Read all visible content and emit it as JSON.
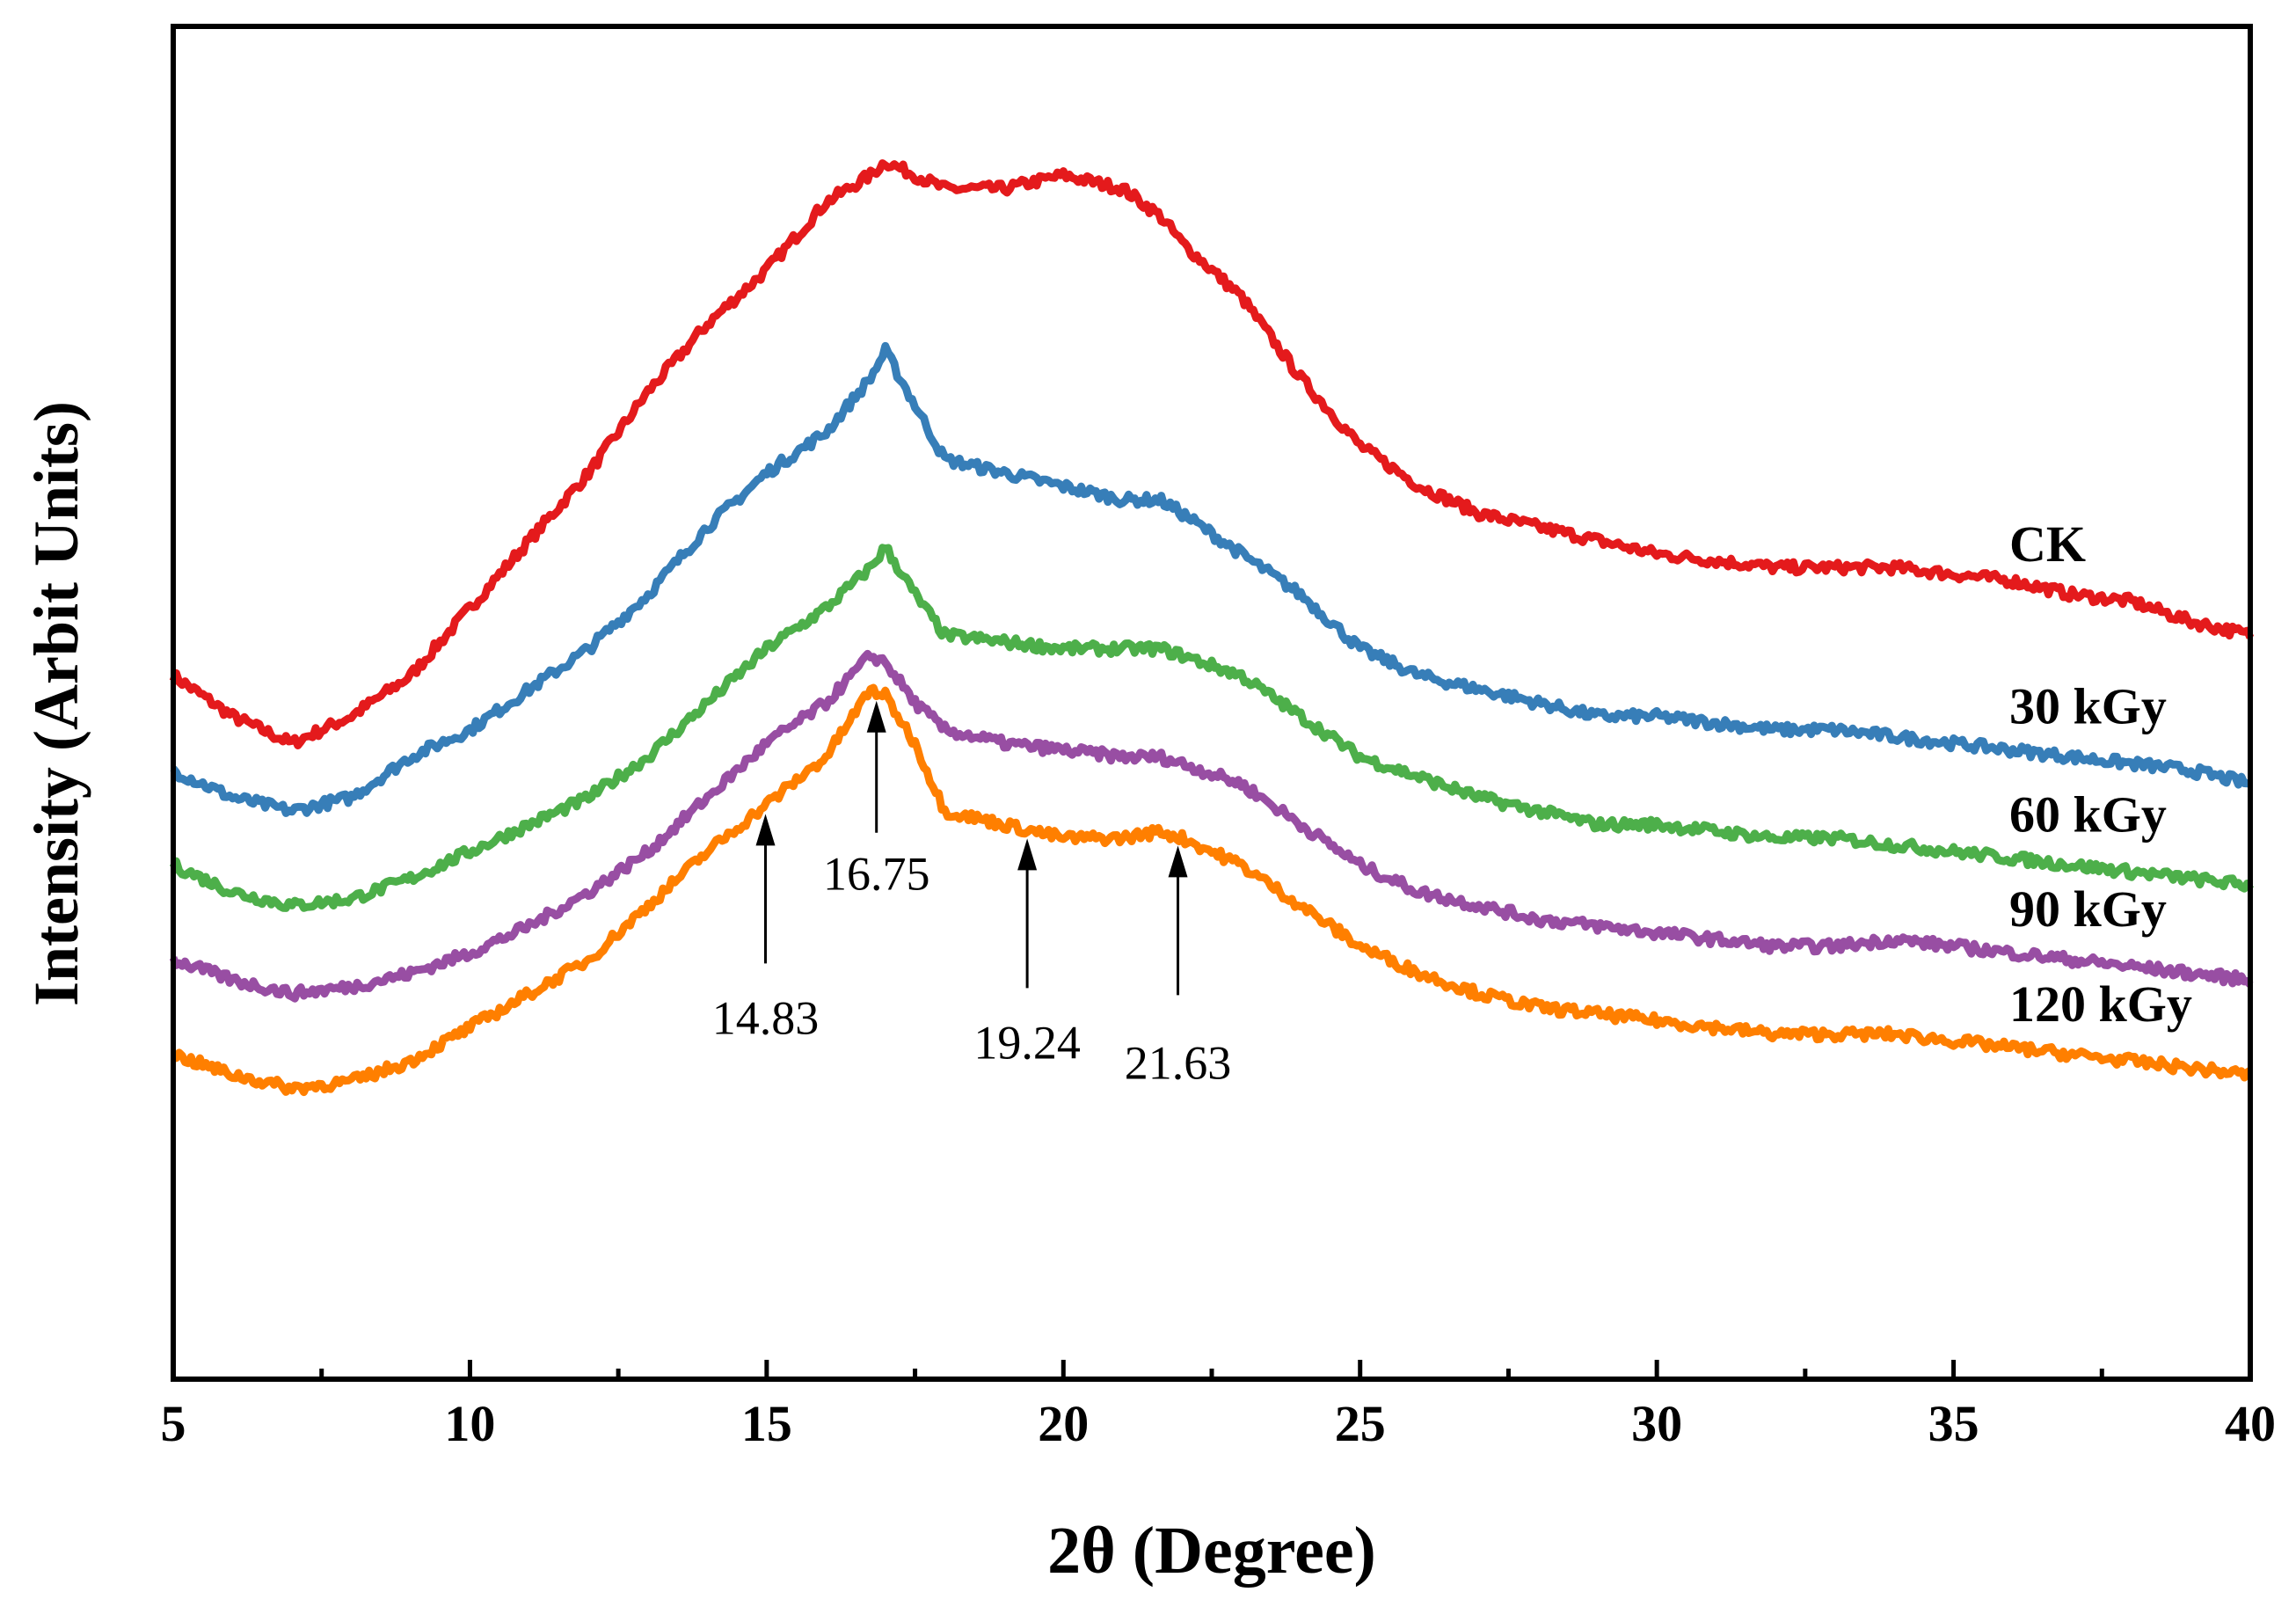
{
  "chart_data": {
    "type": "line",
    "title": "",
    "xlabel": "2θ (Degree)",
    "ylabel": "Intensity (Arbit Units)",
    "xlim": [
      5,
      40
    ],
    "xticks": [
      5,
      10,
      15,
      20,
      25,
      30,
      35,
      40
    ],
    "yticks_shown": false,
    "grid": false,
    "x": [
      5,
      6,
      7,
      8,
      9,
      10,
      11,
      12,
      13,
      14,
      15,
      16,
      16.75,
      17,
      17.5,
      18,
      19,
      20,
      21,
      21.63,
      22,
      23,
      24,
      25,
      26,
      27,
      28,
      29,
      30,
      31,
      32,
      33,
      34,
      35,
      36,
      37,
      38,
      39,
      40
    ],
    "series": [
      {
        "name": "CK",
        "color": "#e41a1c",
        "values": [
          0.52,
          0.49,
          0.47,
          0.49,
          0.52,
          0.57,
          0.62,
          0.67,
          0.73,
          0.78,
          0.82,
          0.87,
          0.89,
          0.9,
          0.89,
          0.88,
          0.88,
          0.89,
          0.88,
          0.86,
          0.84,
          0.8,
          0.74,
          0.69,
          0.66,
          0.64,
          0.63,
          0.62,
          0.61,
          0.605,
          0.6,
          0.6,
          0.6,
          0.595,
          0.59,
          0.58,
          0.575,
          0.56,
          0.55
        ]
      },
      {
        "name": "30 kGy",
        "color": "#377eb8",
        "values": [
          0.45,
          0.43,
          0.42,
          0.43,
          0.46,
          0.48,
          0.51,
          0.54,
          0.58,
          0.63,
          0.67,
          0.7,
          0.74,
          0.76,
          0.72,
          0.68,
          0.67,
          0.66,
          0.65,
          0.65,
          0.64,
          0.61,
          0.58,
          0.54,
          0.52,
          0.51,
          0.5,
          0.49,
          0.49,
          0.485,
          0.48,
          0.48,
          0.475,
          0.47,
          0.465,
          0.46,
          0.455,
          0.45,
          0.44
        ]
      },
      {
        "name": "60 kGy",
        "color": "#4daf4a",
        "values": [
          0.38,
          0.36,
          0.35,
          0.355,
          0.37,
          0.39,
          0.41,
          0.43,
          0.46,
          0.5,
          0.54,
          0.57,
          0.6,
          0.615,
          0.58,
          0.55,
          0.545,
          0.54,
          0.54,
          0.54,
          0.535,
          0.52,
          0.49,
          0.46,
          0.445,
          0.43,
          0.42,
          0.41,
          0.41,
          0.405,
          0.4,
          0.4,
          0.395,
          0.39,
          0.385,
          0.38,
          0.375,
          0.37,
          0.365
        ]
      },
      {
        "name": "90 kGy",
        "color": "#984ea3",
        "values": [
          0.31,
          0.295,
          0.285,
          0.29,
          0.3,
          0.315,
          0.335,
          0.36,
          0.39,
          0.43,
          0.47,
          0.5,
          0.535,
          0.53,
          0.5,
          0.48,
          0.47,
          0.465,
          0.46,
          0.46,
          0.455,
          0.44,
          0.41,
          0.38,
          0.36,
          0.35,
          0.34,
          0.335,
          0.33,
          0.325,
          0.32,
          0.32,
          0.325,
          0.32,
          0.315,
          0.31,
          0.305,
          0.3,
          0.295
        ]
      },
      {
        "name": "120 kGy",
        "color": "#ff7f00",
        "values": [
          0.24,
          0.225,
          0.215,
          0.22,
          0.235,
          0.26,
          0.285,
          0.31,
          0.35,
          0.39,
          0.425,
          0.46,
          0.51,
          0.505,
          0.47,
          0.42,
          0.41,
          0.4,
          0.4,
          0.405,
          0.4,
          0.38,
          0.35,
          0.32,
          0.3,
          0.285,
          0.275,
          0.27,
          0.265,
          0.26,
          0.255,
          0.255,
          0.255,
          0.25,
          0.245,
          0.24,
          0.235,
          0.23,
          0.225
        ]
      }
    ],
    "annotations": [
      {
        "label": "14.83",
        "x": 14.83
      },
      {
        "label": "16.75",
        "x": 16.75
      },
      {
        "label": "19.24",
        "x": 19.24
      },
      {
        "label": "21.63",
        "x": 21.63
      }
    ]
  }
}
